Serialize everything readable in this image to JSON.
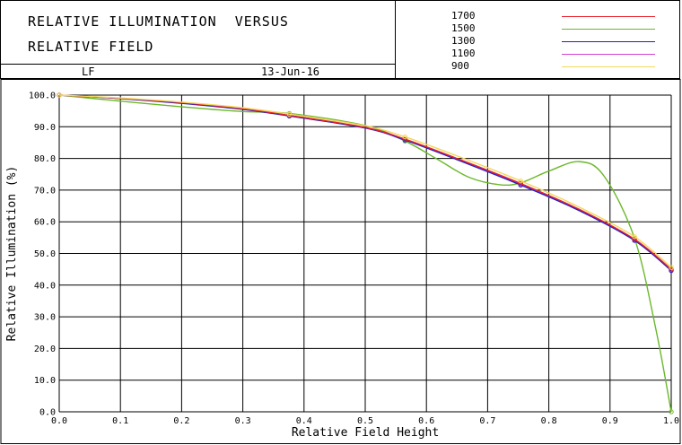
{
  "header": {
    "title_line1": "RELATIVE ILLUMINATION  VERSUS",
    "title_line2": "RELATIVE FIELD",
    "lens": "LF",
    "date": "13-Jun-16"
  },
  "chart_data": {
    "type": "line",
    "title": "RELATIVE ILLUMINATION VERSUS RELATIVE FIELD",
    "xlabel": "Relative Field Height",
    "ylabel": "Relative Illumination (%)",
    "xlim": [
      0.0,
      1.0
    ],
    "ylim": [
      0.0,
      100.0
    ],
    "xticks": [
      "0.0",
      "0.1",
      "0.2",
      "0.3",
      "0.4",
      "0.5",
      "0.6",
      "0.7",
      "0.8",
      "0.9",
      "1.0"
    ],
    "yticks": [
      "0.0",
      "10.0",
      "20.0",
      "30.0",
      "40.0",
      "50.0",
      "60.0",
      "70.0",
      "80.0",
      "90.0",
      "100.0"
    ],
    "grid": true,
    "legend_position": "top-right",
    "series": [
      {
        "name": "1700",
        "color": "#e8202a",
        "x": [
          0.0,
          0.1,
          0.2,
          0.3,
          0.376,
          0.5,
          0.565,
          0.65,
          0.754,
          0.85,
          0.94,
          1.0
        ],
        "y": [
          100.0,
          99.0,
          97.6,
          95.7,
          93.6,
          89.8,
          86.1,
          80.0,
          72.1,
          63.9,
          54.5,
          45.0
        ]
      },
      {
        "name": "1500",
        "color": "#6ab82a",
        "x": [
          0.0,
          0.1,
          0.2,
          0.3,
          0.376,
          0.5,
          0.565,
          0.62,
          0.67,
          0.72,
          0.754,
          0.8,
          0.85,
          0.89,
          0.94,
          0.975,
          1.0
        ],
        "y": [
          100.0,
          98.1,
          96.3,
          94.8,
          94.2,
          90.4,
          85.5,
          79.5,
          74.0,
          71.7,
          72.3,
          76.0,
          79.0,
          74.5,
          54.8,
          26.0,
          0.0
        ]
      },
      {
        "name": "1300",
        "color": "#2020c8",
        "x": [
          0.0,
          0.1,
          0.2,
          0.3,
          0.376,
          0.5,
          0.565,
          0.65,
          0.754,
          0.85,
          0.94,
          1.0
        ],
        "y": [
          100.0,
          98.9,
          97.4,
          95.5,
          93.4,
          89.6,
          85.8,
          79.6,
          71.6,
          63.5,
          54.1,
          44.6
        ]
      },
      {
        "name": "1100",
        "color": "#d040d0",
        "x": [
          0.0,
          0.1,
          0.2,
          0.3,
          0.376,
          0.5,
          0.565,
          0.65,
          0.754,
          0.85,
          0.94,
          1.0
        ],
        "y": [
          100.0,
          98.95,
          97.5,
          95.6,
          93.5,
          89.7,
          86.0,
          79.8,
          71.9,
          63.7,
          54.3,
          44.8
        ]
      },
      {
        "name": "900",
        "color": "#f2d85a",
        "x": [
          0.0,
          0.1,
          0.2,
          0.3,
          0.376,
          0.5,
          0.565,
          0.65,
          0.754,
          0.85,
          0.94,
          1.0
        ],
        "y": [
          100.0,
          99.1,
          97.8,
          96.0,
          94.0,
          90.3,
          86.8,
          80.8,
          72.9,
          64.6,
          55.3,
          45.6
        ]
      }
    ]
  }
}
